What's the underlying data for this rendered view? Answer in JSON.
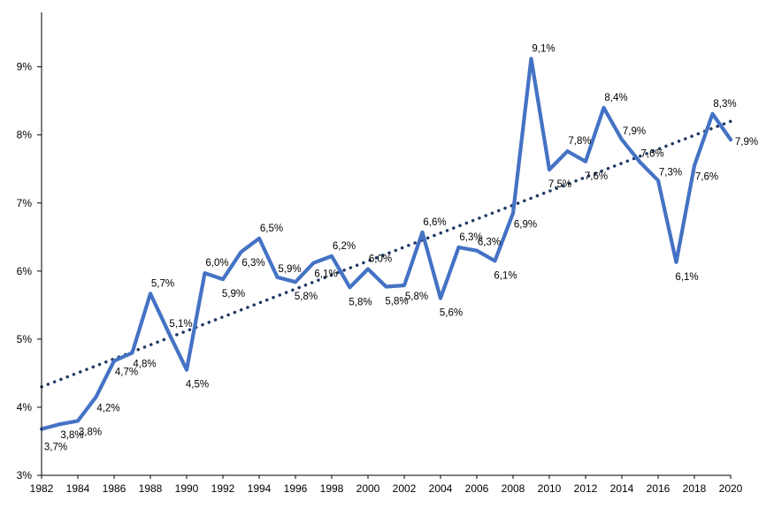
{
  "chart_data": {
    "type": "line",
    "title": "",
    "xlabel": "",
    "ylabel": "",
    "ylim": [
      3,
      9.8
    ],
    "xlim": [
      1982,
      2020
    ],
    "y_ticks": [
      3,
      4,
      5,
      6,
      7,
      8,
      9
    ],
    "y_tick_labels": [
      "3%",
      "4%",
      "5%",
      "6%",
      "7%",
      "8%",
      "9%"
    ],
    "x_ticks": [
      "1982",
      "1984",
      "1986",
      "1988",
      "1990",
      "1992",
      "1994",
      "1996",
      "1998",
      "2000",
      "2002",
      "2004",
      "2006",
      "2008",
      "2010",
      "2012",
      "2014",
      "2016",
      "2018",
      "2020"
    ],
    "grid": false,
    "legend": "none",
    "colors": {
      "series": "#4472C4",
      "trend": "#1F3864",
      "axis": "#000000"
    },
    "series": [
      {
        "values": [
          {
            "x": 1982,
            "y": 3.68,
            "label": "3,7%"
          },
          {
            "x": 1983,
            "y": 3.75,
            "label": "3,8%"
          },
          {
            "x": 1984,
            "y": 3.8,
            "label": "3,8%"
          },
          {
            "x": 1985,
            "y": 4.15,
            "label": "4,2%"
          },
          {
            "x": 1986,
            "y": 4.68,
            "label": "4,7%"
          },
          {
            "x": 1987,
            "y": 4.8,
            "label": "4,8%"
          },
          {
            "x": 1988,
            "y": 5.67,
            "label": "5,7%"
          },
          {
            "x": 1989,
            "y": 5.1,
            "label": "5,1%"
          },
          {
            "x": 1990,
            "y": 4.55,
            "label": "4,5%"
          },
          {
            "x": 1991,
            "y": 5.97,
            "label": "6,0%"
          },
          {
            "x": 1992,
            "y": 5.88,
            "label": "5,9%"
          },
          {
            "x": 1993,
            "y": 6.28,
            "label": "6,3%"
          },
          {
            "x": 1994,
            "y": 6.48,
            "label": "6,5%"
          },
          {
            "x": 1995,
            "y": 5.91,
            "label": "5,9%"
          },
          {
            "x": 1996,
            "y": 5.84,
            "label": "5,8%"
          },
          {
            "x": 1997,
            "y": 6.12,
            "label": "6,1%"
          },
          {
            "x": 1998,
            "y": 6.22,
            "label": "6,2%"
          },
          {
            "x": 1999,
            "y": 5.76,
            "label": "5,8%"
          },
          {
            "x": 2000,
            "y": 6.03,
            "label": "6,0%"
          },
          {
            "x": 2001,
            "y": 5.77,
            "label": "5,8%"
          },
          {
            "x": 2002,
            "y": 5.79,
            "label": "5,8%"
          },
          {
            "x": 2003,
            "y": 6.57,
            "label": "6,6%"
          },
          {
            "x": 2004,
            "y": 5.6,
            "label": "5,6%"
          },
          {
            "x": 2005,
            "y": 6.35,
            "label": "6,3%"
          },
          {
            "x": 2006,
            "y": 6.3,
            "label": "6,3%"
          },
          {
            "x": 2007,
            "y": 6.15,
            "label": "6,1%"
          },
          {
            "x": 2008,
            "y": 6.85,
            "label": "6,9%"
          },
          {
            "x": 2009,
            "y": 9.12,
            "label": "9,1%"
          },
          {
            "x": 2010,
            "y": 7.49,
            "label": "7,5%"
          },
          {
            "x": 2011,
            "y": 7.76,
            "label": "7,8%"
          },
          {
            "x": 2012,
            "y": 7.61,
            "label": "7,6%"
          },
          {
            "x": 2013,
            "y": 8.4,
            "label": "8,4%"
          },
          {
            "x": 2014,
            "y": 7.93,
            "label": "7,9%"
          },
          {
            "x": 2015,
            "y": 7.6,
            "label": "7,6%"
          },
          {
            "x": 2016,
            "y": 7.33,
            "label": "7,3%"
          },
          {
            "x": 2017,
            "y": 6.13,
            "label": "6,1%"
          },
          {
            "x": 2018,
            "y": 7.55,
            "label": "7,6%"
          },
          {
            "x": 2019,
            "y": 8.31,
            "label": "8,3%"
          },
          {
            "x": 2020,
            "y": 7.93,
            "label": "7,9%"
          }
        ]
      }
    ],
    "trendline": {
      "type": "linear",
      "style": "dotted",
      "start": {
        "x": 1982,
        "y": 4.3
      },
      "end": {
        "x": 2020,
        "y": 8.2
      }
    }
  }
}
